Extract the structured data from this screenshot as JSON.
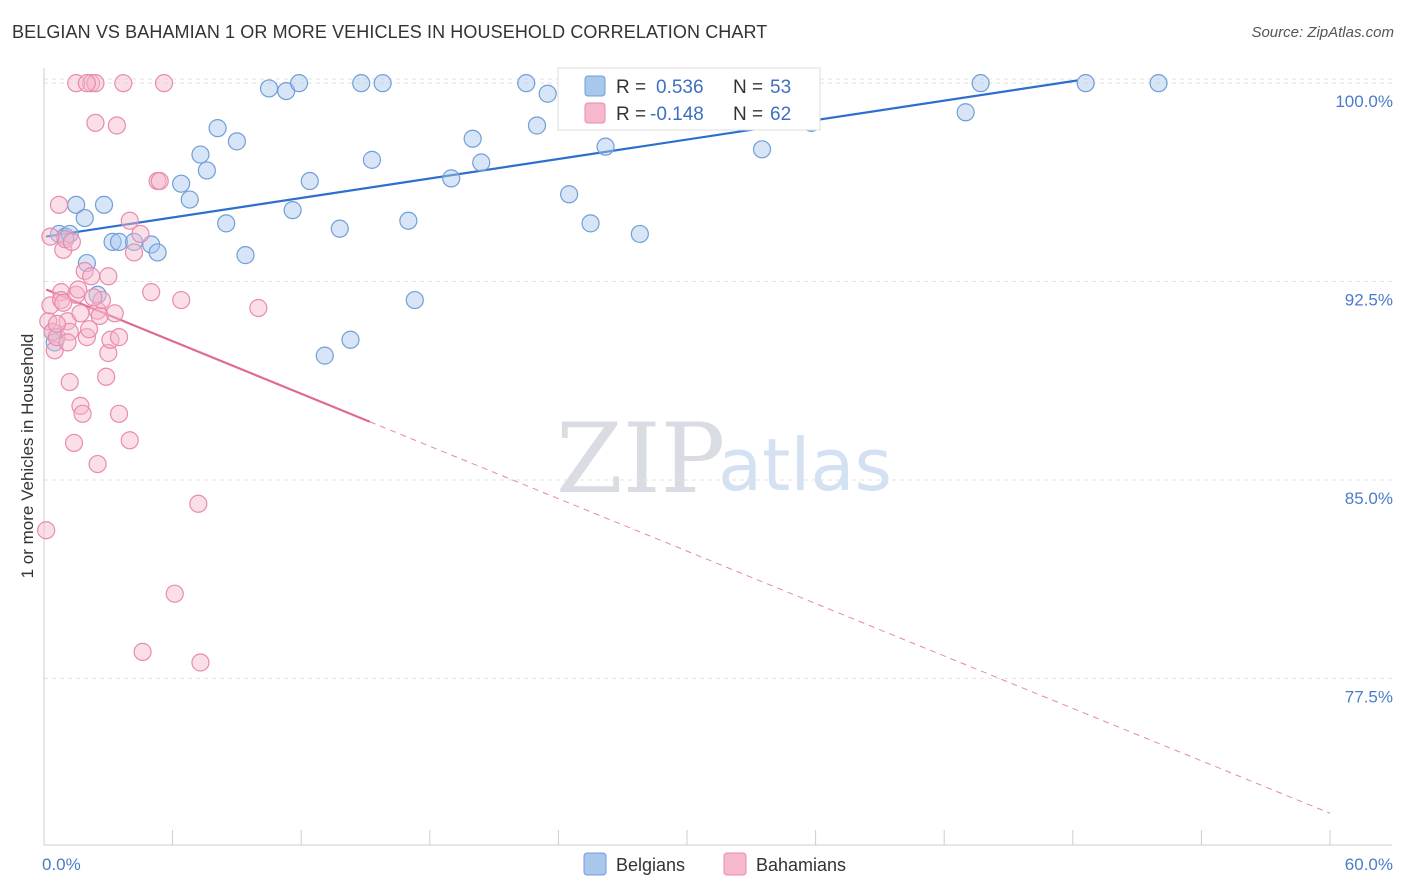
{
  "title": "BELGIAN VS BAHAMIAN 1 OR MORE VEHICLES IN HOUSEHOLD CORRELATION CHART",
  "source": "Source: ZipAtlas.com",
  "watermark": {
    "zip": "ZIP",
    "atlas": "atlas"
  },
  "colors": {
    "belgian_fill": "#a9c6ec",
    "belgian_stroke": "#6f9fd8",
    "belgian_line": "#2d6fcc",
    "bahamian_fill": "#f5b8cd",
    "bahamian_stroke": "#e98bab",
    "bahamian_line": "#e06a94",
    "tick_label": "#4a7cc9",
    "grid": "#e2e2e2"
  },
  "legend": {
    "rows": [
      {
        "r_label": "R =",
        "r_value": "0.536",
        "n_label": "N =",
        "n_value": "53"
      },
      {
        "r_label": "R =",
        "r_value": "-0.148",
        "n_label": "N =",
        "n_value": "62"
      }
    ]
  },
  "bottom_legend": [
    "Belgians",
    "Bahamians"
  ],
  "chart_data": {
    "type": "scatter",
    "xlabel": "",
    "ylabel": "1 or more Vehicles in Household",
    "xlim": [
      0,
      60
    ],
    "ylim": [
      71.2,
      100.8
    ],
    "x_tick_labels": [
      {
        "value": 0,
        "label": "0.0%"
      },
      {
        "value": 60,
        "label": "60.0%"
      }
    ],
    "y_tick_labels": [
      {
        "value": 100,
        "label": "100.0%"
      },
      {
        "value": 92.5,
        "label": "92.5%"
      },
      {
        "value": 85,
        "label": "85.0%"
      },
      {
        "value": 77.5,
        "label": "77.5%"
      }
    ],
    "series": [
      {
        "name": "Belgians",
        "r": 0.536,
        "n": 53,
        "trend": {
          "x": [
            0.1,
            48.2
          ],
          "y": [
            94.2,
            100.1
          ],
          "dashed_to": null
        },
        "points": [
          [
            0.4,
            90.6
          ],
          [
            0.5,
            90.2
          ],
          [
            0.7,
            94.3
          ],
          [
            1.0,
            94.2
          ],
          [
            1.2,
            94.3
          ],
          [
            1.5,
            95.4
          ],
          [
            1.9,
            94.9
          ],
          [
            2.0,
            93.2
          ],
          [
            2.5,
            92.0
          ],
          [
            2.8,
            95.4
          ],
          [
            3.2,
            94.0
          ],
          [
            3.5,
            94.0
          ],
          [
            4.2,
            94.0
          ],
          [
            5.0,
            93.9
          ],
          [
            5.3,
            93.6
          ],
          [
            6.4,
            96.2
          ],
          [
            6.8,
            95.6
          ],
          [
            7.3,
            97.3
          ],
          [
            7.6,
            96.7
          ],
          [
            8.1,
            98.3
          ],
          [
            8.5,
            94.7
          ],
          [
            9.0,
            97.8
          ],
          [
            9.4,
            93.5
          ],
          [
            10.5,
            99.8
          ],
          [
            11.3,
            99.7
          ],
          [
            11.6,
            95.2
          ],
          [
            11.9,
            100.0
          ],
          [
            12.4,
            96.3
          ],
          [
            13.1,
            89.7
          ],
          [
            13.8,
            94.5
          ],
          [
            14.3,
            90.3
          ],
          [
            14.8,
            100.0
          ],
          [
            15.3,
            97.1
          ],
          [
            15.8,
            100.0
          ],
          [
            17.0,
            94.8
          ],
          [
            17.3,
            91.8
          ],
          [
            19.0,
            96.4
          ],
          [
            20.0,
            97.9
          ],
          [
            20.4,
            97.0
          ],
          [
            22.5,
            100.0
          ],
          [
            23.0,
            98.4
          ],
          [
            23.5,
            99.6
          ],
          [
            24.5,
            95.8
          ],
          [
            25.5,
            94.7
          ],
          [
            26.2,
            97.6
          ],
          [
            27.8,
            94.3
          ],
          [
            33.5,
            97.5
          ],
          [
            34.7,
            99.2
          ],
          [
            35.8,
            98.5
          ],
          [
            43.0,
            98.9
          ],
          [
            43.7,
            100.0
          ],
          [
            48.6,
            100.0
          ],
          [
            52.0,
            100.0
          ]
        ]
      },
      {
        "name": "Bahamians",
        "r": -0.148,
        "n": 62,
        "trend": {
          "x": [
            0.1,
            15.2
          ],
          "y": [
            92.2,
            87.2
          ],
          "dashed_to": {
            "x": 60,
            "y": 72.4
          }
        },
        "points": [
          [
            0.1,
            83.1
          ],
          [
            0.2,
            91.0
          ],
          [
            0.3,
            91.6
          ],
          [
            0.4,
            90.6
          ],
          [
            0.5,
            89.9
          ],
          [
            0.6,
            90.4
          ],
          [
            0.7,
            95.4
          ],
          [
            0.8,
            92.1
          ],
          [
            0.8,
            91.8
          ],
          [
            0.9,
            93.7
          ],
          [
            1.0,
            94.1
          ],
          [
            1.1,
            91.0
          ],
          [
            1.2,
            88.7
          ],
          [
            1.2,
            90.6
          ],
          [
            1.3,
            94.0
          ],
          [
            1.4,
            86.4
          ],
          [
            1.5,
            92.0
          ],
          [
            1.6,
            92.2
          ],
          [
            1.7,
            87.8
          ],
          [
            1.8,
            87.5
          ],
          [
            1.9,
            92.9
          ],
          [
            2.0,
            90.4
          ],
          [
            2.1,
            90.7
          ],
          [
            2.2,
            92.7
          ],
          [
            2.2,
            100.0
          ],
          [
            2.4,
            98.5
          ],
          [
            2.4,
            100.0
          ],
          [
            2.5,
            85.6
          ],
          [
            2.5,
            91.4
          ],
          [
            2.6,
            91.2
          ],
          [
            2.7,
            91.8
          ],
          [
            2.9,
            88.9
          ],
          [
            3.0,
            92.7
          ],
          [
            3.0,
            89.8
          ],
          [
            3.1,
            90.3
          ],
          [
            3.3,
            91.3
          ],
          [
            3.4,
            98.4
          ],
          [
            3.5,
            90.4
          ],
          [
            3.5,
            87.5
          ],
          [
            3.7,
            100.0
          ],
          [
            4.0,
            86.5
          ],
          [
            4.0,
            94.8
          ],
          [
            4.2,
            93.6
          ],
          [
            4.5,
            94.3
          ],
          [
            4.6,
            78.5
          ],
          [
            5.0,
            92.1
          ],
          [
            5.3,
            96.3
          ],
          [
            5.4,
            96.3
          ],
          [
            5.6,
            100.0
          ],
          [
            6.1,
            80.7
          ],
          [
            6.4,
            91.8
          ],
          [
            7.2,
            84.1
          ],
          [
            7.3,
            78.1
          ],
          [
            10.0,
            91.5
          ],
          [
            0.3,
            94.2
          ],
          [
            1.5,
            100.0
          ],
          [
            2.0,
            100.0
          ],
          [
            0.9,
            91.7
          ],
          [
            1.1,
            90.2
          ],
          [
            2.3,
            91.9
          ],
          [
            1.7,
            91.3
          ],
          [
            0.6,
            90.9
          ]
        ]
      }
    ],
    "legend_position": "top-center",
    "grid": true
  }
}
